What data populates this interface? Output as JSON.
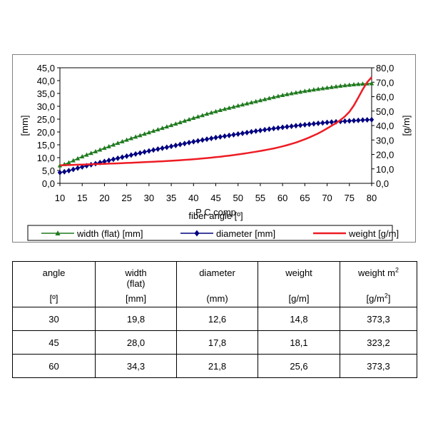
{
  "chart_data": {
    "type": "line",
    "overlap_text": "P C comp",
    "xlabel": "fiber angle [º]",
    "ylabel_left": "[mm]",
    "ylabel_right": "[g/m]",
    "x_ticks": [
      "10",
      "15",
      "20",
      "25",
      "30",
      "35",
      "40",
      "45",
      "50",
      "55",
      "60",
      "65",
      "70",
      "75",
      "80"
    ],
    "y_left_ticks": [
      "0,0",
      "5,0",
      "10,0",
      "15,0",
      "20,0",
      "25,0",
      "30,0",
      "35,0",
      "40,0",
      "45,0"
    ],
    "y_right_ticks": [
      "0,0",
      "10,0",
      "20,0",
      "30,0",
      "40,0",
      "50,0",
      "60,0",
      "70,0",
      "80,0"
    ],
    "xlim": [
      10,
      80
    ],
    "ylim_left": [
      0,
      45
    ],
    "ylim_right": [
      0,
      80
    ],
    "grid": false,
    "legend_position": "bottom",
    "series": [
      {
        "name": "width (flat) [mm]",
        "axis": "left",
        "color": "#1f7a1f",
        "marker": "triangle",
        "x": [
          10,
          15,
          20,
          25,
          30,
          35,
          40,
          45,
          50,
          55,
          60,
          65,
          70,
          75,
          80
        ],
        "values": [
          6.9,
          10.4,
          13.7,
          16.9,
          19.8,
          22.6,
          25.4,
          28.0,
          30.2,
          32.3,
          34.3,
          35.9,
          37.2,
          38.3,
          38.9
        ]
      },
      {
        "name": "diameter [mm]",
        "axis": "left",
        "color": "#000080",
        "marker": "diamond",
        "x": [
          10,
          15,
          20,
          25,
          30,
          35,
          40,
          45,
          50,
          55,
          60,
          65,
          70,
          75,
          80
        ],
        "values": [
          4.2,
          6.4,
          8.5,
          10.6,
          12.6,
          14.4,
          16.2,
          17.8,
          19.2,
          20.6,
          21.8,
          22.8,
          23.7,
          24.3,
          24.8
        ]
      },
      {
        "name": "weight [g/m]",
        "axis": "right",
        "color": "#ee1c24",
        "marker": "none",
        "x": [
          10,
          15,
          20,
          25,
          30,
          35,
          40,
          45,
          50,
          55,
          60,
          65,
          70,
          75,
          80
        ],
        "values": [
          12.5,
          13.0,
          13.5,
          14.1,
          14.8,
          15.6,
          16.7,
          18.1,
          20.0,
          22.4,
          25.6,
          30.5,
          38.0,
          49.5,
          73.5
        ]
      }
    ]
  },
  "table": {
    "headers": [
      {
        "line1": "angle",
        "line2": "",
        "unit": "[º]"
      },
      {
        "line1": "width",
        "line2": "(flat)",
        "unit": "[mm]"
      },
      {
        "line1": "diameter",
        "line2": "",
        "unit": "(mm)"
      },
      {
        "line1": "weight",
        "line2": "",
        "unit": "[g/m]"
      },
      {
        "line1": "weight m",
        "line1_sup": "2",
        "line2": "",
        "unit": "[g/m",
        "unit_sup": "2",
        "unit_tail": "]"
      }
    ],
    "rows": [
      [
        "30",
        "19,8",
        "12,6",
        "14,8",
        "373,3"
      ],
      [
        "45",
        "28,0",
        "17,8",
        "18,1",
        "323,2"
      ],
      [
        "60",
        "34,3",
        "21,8",
        "25,6",
        "373,3"
      ]
    ]
  }
}
